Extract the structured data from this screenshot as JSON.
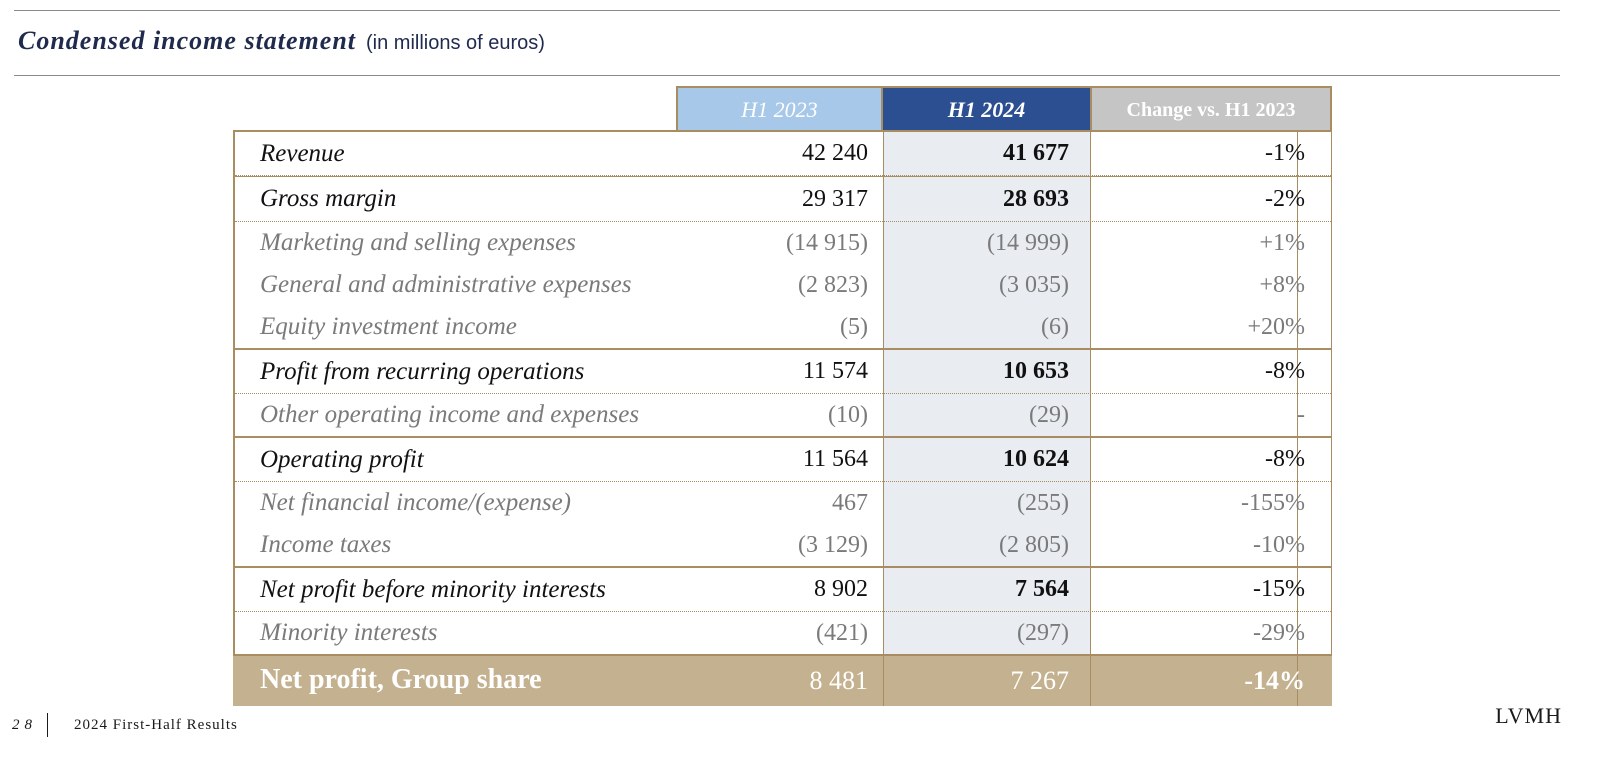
{
  "header": {
    "title": "Condensed income statement",
    "subtitle": "(in millions of euros)"
  },
  "table": {
    "columns": [
      "H1 2023",
      "H1 2024",
      "Change vs. H1 2023"
    ],
    "rows": [
      {
        "label": "Revenue",
        "h1_2023": "42 240",
        "h1_2024": "41 677",
        "change": "-1%"
      },
      {
        "label": "Gross margin",
        "h1_2023": "29 317",
        "h1_2024": "28 693",
        "change": "-2%"
      },
      {
        "label": "Marketing and selling expenses",
        "h1_2023": "(14 915)",
        "h1_2024": "(14 999)",
        "change": "+1%"
      },
      {
        "label": "General and administrative expenses",
        "h1_2023": "(2 823)",
        "h1_2024": "(3 035)",
        "change": "+8%"
      },
      {
        "label": "Equity investment income",
        "h1_2023": "(5)",
        "h1_2024": "(6)",
        "change": "+20%"
      },
      {
        "label": "Profit from recurring operations",
        "h1_2023": "11 574",
        "h1_2024": "10 653",
        "change": "-8%"
      },
      {
        "label": "Other operating income and expenses",
        "h1_2023": "(10)",
        "h1_2024": "(29)",
        "change": "-"
      },
      {
        "label": "Operating profit",
        "h1_2023": "11 564",
        "h1_2024": "10 624",
        "change": "-8%"
      },
      {
        "label": "Net financial income/(expense)",
        "h1_2023": "467",
        "h1_2024": "(255)",
        "change": "-155%"
      },
      {
        "label": "Income taxes",
        "h1_2023": "(3 129)",
        "h1_2024": "(2 805)",
        "change": "-10%"
      },
      {
        "label": "Net profit before minority interests",
        "h1_2023": "8 902",
        "h1_2024": "7 564",
        "change": "-15%"
      },
      {
        "label": "Minority interests",
        "h1_2023": "(421)",
        "h1_2024": "(297)",
        "change": "-29%"
      }
    ],
    "total": {
      "label": "Net profit, Group share",
      "h1_2023": "8 481",
      "h1_2024": "7 267",
      "change": "-14%"
    }
  },
  "footer": {
    "page_number": "28",
    "text": "2024 First-Half Results",
    "logo": "LVMH"
  },
  "colors": {
    "navy": "#1f2a4d",
    "h1_2023_header": "#a7c8e8",
    "h1_2024_header": "#2c4f91",
    "change_header": "#c5c5c5",
    "gold_border": "#a88c62",
    "total_row": "#c4b18f",
    "h1_2024_shade": "#e9ecf1"
  }
}
